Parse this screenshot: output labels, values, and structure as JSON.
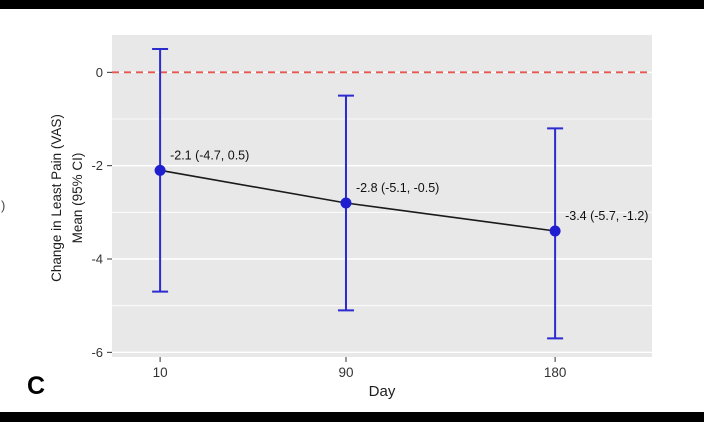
{
  "panel_label": "C",
  "stray_text": ")",
  "axes": {
    "y_label_line1": "Change in Least Pain (VAS)",
    "y_label_line2": "Mean (95% CI)",
    "x_label": "Day"
  },
  "chart_data": {
    "type": "line",
    "title": "",
    "xlabel": "Day",
    "ylabel": "Change in Least Pain (VAS) Mean (95% CI)",
    "x": [
      10,
      90,
      180
    ],
    "series": [
      {
        "name": "Change in Least Pain (VAS) Mean",
        "values": [
          -2.1,
          -2.8,
          -3.4
        ],
        "ci_low": [
          -4.7,
          -5.1,
          -5.7
        ],
        "ci_high": [
          0.5,
          -0.5,
          -1.2
        ]
      }
    ],
    "annotations": [
      "-2.1 (-4.7, 0.5)",
      "-2.8 (-5.1, -0.5)",
      "-3.4 (-5.7, -1.2)"
    ],
    "x_ticks": [
      10,
      90,
      180
    ],
    "y_ticks": [
      0,
      -2,
      -4,
      -6
    ],
    "y_minor_ticks": [
      -1,
      -3,
      -5
    ],
    "xlim": [
      -10.7,
      221.7
    ],
    "ylim": [
      -6.1,
      0.8
    ],
    "reference_line_y": 0,
    "grid": true,
    "legend": false,
    "colors": {
      "point": "#1f1fd0",
      "error_bar": "#2b2bd0",
      "line": "#1a1a1a",
      "reference": "#e8574f",
      "panel_bg": "#e8e8e8",
      "grid": "#ffffff",
      "tick_text": "#333333",
      "annotation_text": "#111111"
    }
  }
}
